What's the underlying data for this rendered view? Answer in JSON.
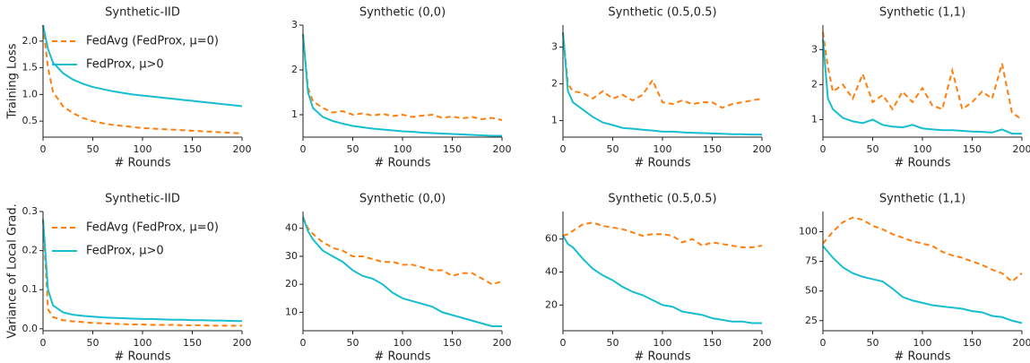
{
  "chart_data": [
    {
      "type": "line",
      "title": "Synthetic-IID",
      "y_label": "Training Loss",
      "x_label": "# Rounds",
      "legend": "upper left",
      "x": [
        0,
        5,
        10,
        20,
        30,
        40,
        50,
        60,
        70,
        80,
        90,
        100,
        110,
        120,
        130,
        140,
        150,
        160,
        170,
        180,
        190,
        200
      ],
      "xlim": [
        0,
        200
      ],
      "xticks": [
        0,
        50,
        100,
        150,
        200
      ],
      "ylim": [
        0.2,
        2.3
      ],
      "yticks": [
        0.5,
        {
          "value": 1,
          "label": "1.0"
        },
        1.5,
        {
          "value": 2,
          "label": "2.0"
        }
      ],
      "series": [
        {
          "name": "FedAvg (FedProx, μ=0)",
          "color": "#ff7f0e",
          "style": "dashed",
          "values": [
            2.3,
            1.5,
            1.05,
            0.78,
            0.65,
            0.56,
            0.5,
            0.46,
            0.43,
            0.41,
            0.39,
            0.37,
            0.36,
            0.35,
            0.34,
            0.33,
            0.32,
            0.31,
            0.3,
            0.29,
            0.28,
            0.27
          ]
        },
        {
          "name": "FedProx, μ>0",
          "color": "#17becf",
          "style": "solid",
          "values": [
            2.3,
            1.85,
            1.6,
            1.4,
            1.28,
            1.2,
            1.14,
            1.1,
            1.06,
            1.03,
            1.0,
            0.98,
            0.96,
            0.94,
            0.92,
            0.9,
            0.88,
            0.86,
            0.84,
            0.82,
            0.8,
            0.78
          ]
        }
      ]
    },
    {
      "type": "line",
      "title": "Synthetic (0,0)",
      "x_label": "# Rounds",
      "x": [
        0,
        5,
        10,
        20,
        30,
        40,
        50,
        60,
        70,
        80,
        90,
        100,
        110,
        120,
        130,
        140,
        150,
        160,
        170,
        180,
        190,
        200
      ],
      "xlim": [
        0,
        200
      ],
      "xticks": [
        0,
        50,
        100,
        150,
        200
      ],
      "ylim": [
        0.5,
        3.0
      ],
      "yticks": [
        1,
        2,
        3
      ],
      "series": [
        {
          "color": "#ff7f0e",
          "style": "dashed",
          "values": [
            2.8,
            1.6,
            1.3,
            1.15,
            1.05,
            1.08,
            1.0,
            1.03,
            0.98,
            1.02,
            0.97,
            1.0,
            0.95,
            0.98,
            1.0,
            0.93,
            0.96,
            0.92,
            0.95,
            0.9,
            0.93,
            0.88
          ]
        },
        {
          "color": "#17becf",
          "style": "solid",
          "values": [
            2.8,
            1.5,
            1.15,
            0.95,
            0.86,
            0.8,
            0.75,
            0.72,
            0.69,
            0.67,
            0.65,
            0.63,
            0.62,
            0.6,
            0.59,
            0.58,
            0.57,
            0.56,
            0.55,
            0.54,
            0.53,
            0.53
          ]
        }
      ]
    },
    {
      "type": "line",
      "title": "Synthetic (0.5,0.5)",
      "x_label": "# Rounds",
      "x": [
        0,
        5,
        10,
        20,
        30,
        40,
        50,
        60,
        70,
        80,
        90,
        100,
        110,
        120,
        130,
        140,
        150,
        160,
        170,
        180,
        190,
        200
      ],
      "xlim": [
        0,
        200
      ],
      "xticks": [
        0,
        50,
        100,
        150,
        200
      ],
      "ylim": [
        0.55,
        3.6
      ],
      "yticks": [
        1,
        2,
        3
      ],
      "series": [
        {
          "color": "#ff7f0e",
          "style": "dashed",
          "values": [
            3.4,
            2.0,
            1.8,
            1.75,
            1.6,
            1.8,
            1.6,
            1.7,
            1.55,
            1.7,
            2.1,
            1.5,
            1.45,
            1.55,
            1.45,
            1.5,
            1.5,
            1.35,
            1.45,
            1.5,
            1.55,
            1.6
          ]
        },
        {
          "color": "#17becf",
          "style": "solid",
          "values": [
            3.4,
            1.8,
            1.5,
            1.3,
            1.1,
            0.95,
            0.88,
            0.8,
            0.78,
            0.75,
            0.73,
            0.7,
            0.7,
            0.68,
            0.67,
            0.66,
            0.65,
            0.64,
            0.63,
            0.63,
            0.62,
            0.62
          ]
        }
      ]
    },
    {
      "type": "line",
      "title": "Synthetic (1,1)",
      "x_label": "# Rounds",
      "x": [
        0,
        5,
        10,
        20,
        30,
        40,
        50,
        60,
        70,
        80,
        90,
        100,
        110,
        120,
        130,
        140,
        150,
        160,
        170,
        180,
        190,
        200
      ],
      "xlim": [
        0,
        200
      ],
      "xticks": [
        0,
        50,
        100,
        150,
        200
      ],
      "ylim": [
        0.5,
        3.7
      ],
      "yticks": [
        1,
        2,
        3
      ],
      "series": [
        {
          "color": "#ff7f0e",
          "style": "dashed",
          "values": [
            3.5,
            2.5,
            1.8,
            2.0,
            1.6,
            2.3,
            1.5,
            1.7,
            1.3,
            1.8,
            1.5,
            1.9,
            1.4,
            1.3,
            2.4,
            1.3,
            1.5,
            1.8,
            1.6,
            2.6,
            1.2,
            1.0
          ]
        },
        {
          "color": "#17becf",
          "style": "solid",
          "values": [
            3.3,
            1.6,
            1.3,
            1.05,
            0.95,
            0.9,
            1.0,
            0.85,
            0.8,
            0.78,
            0.85,
            0.75,
            0.72,
            0.7,
            0.7,
            0.68,
            0.66,
            0.65,
            0.63,
            0.72,
            0.6,
            0.6
          ]
        }
      ]
    },
    {
      "type": "line",
      "title": "Synthetic-IID",
      "y_label": "Variance of Local Grad.",
      "x_label": "# Rounds",
      "legend": "upper left",
      "x": [
        0,
        5,
        10,
        20,
        30,
        40,
        50,
        60,
        70,
        80,
        90,
        100,
        110,
        120,
        130,
        140,
        150,
        160,
        170,
        180,
        190,
        200
      ],
      "xlim": [
        0,
        200
      ],
      "xticks": [
        0,
        50,
        100,
        150,
        200
      ],
      "ylim": [
        -0.005,
        0.3
      ],
      "yticks": [
        {
          "value": 0,
          "label": "0.0"
        },
        0.1,
        0.2,
        0.3
      ],
      "series": [
        {
          "name": "FedAvg (FedProx, μ=0)",
          "color": "#ff7f0e",
          "style": "dashed",
          "values": [
            0.28,
            0.05,
            0.03,
            0.022,
            0.019,
            0.017,
            0.015,
            0.014,
            0.013,
            0.012,
            0.011,
            0.011,
            0.01,
            0.01,
            0.01,
            0.009,
            0.009,
            0.009,
            0.008,
            0.008,
            0.008,
            0.008
          ]
        },
        {
          "name": "FedProx, μ>0",
          "color": "#17becf",
          "style": "solid",
          "values": [
            0.28,
            0.1,
            0.06,
            0.042,
            0.036,
            0.033,
            0.031,
            0.029,
            0.028,
            0.027,
            0.026,
            0.025,
            0.025,
            0.024,
            0.023,
            0.023,
            0.022,
            0.022,
            0.021,
            0.021,
            0.02,
            0.02
          ]
        }
      ]
    },
    {
      "type": "line",
      "title": "Synthetic (0,0)",
      "x_label": "# Rounds",
      "x": [
        0,
        5,
        10,
        20,
        30,
        40,
        50,
        60,
        70,
        80,
        90,
        100,
        110,
        120,
        130,
        140,
        150,
        160,
        170,
        180,
        190,
        200
      ],
      "xlim": [
        0,
        200
      ],
      "xticks": [
        0,
        50,
        100,
        150,
        200
      ],
      "ylim": [
        3.4,
        46
      ],
      "yticks": [
        10,
        20,
        30,
        40
      ],
      "series": [
        {
          "color": "#ff7f0e",
          "style": "dashed",
          "values": [
            44,
            40,
            38,
            35,
            33,
            32,
            30,
            30,
            29,
            28,
            28,
            27,
            27,
            26,
            25,
            25,
            23,
            24,
            24,
            22,
            20,
            21
          ]
        },
        {
          "color": "#17becf",
          "style": "solid",
          "values": [
            44,
            39,
            36,
            32,
            30,
            28,
            25,
            23,
            22,
            20,
            17,
            15,
            14,
            13,
            12,
            10,
            9,
            8,
            7,
            6,
            5,
            5
          ]
        }
      ]
    },
    {
      "type": "line",
      "title": "Synthetic (0.5,0.5)",
      "x_label": "# Rounds",
      "x": [
        0,
        5,
        10,
        20,
        30,
        40,
        50,
        60,
        70,
        80,
        90,
        100,
        110,
        120,
        130,
        140,
        150,
        160,
        170,
        180,
        190,
        200
      ],
      "xlim": [
        0,
        200
      ],
      "xticks": [
        0,
        50,
        100,
        150,
        200
      ],
      "ylim": [
        4.4,
        76.7
      ],
      "yticks": [
        20,
        40,
        60
      ],
      "series": [
        {
          "color": "#ff7f0e",
          "style": "dashed",
          "values": [
            62,
            63,
            65,
            69,
            70,
            68,
            67,
            66,
            64,
            62,
            63,
            63,
            62,
            58,
            60,
            56,
            58,
            57,
            56,
            55,
            55,
            56
          ]
        },
        {
          "color": "#17becf",
          "style": "solid",
          "values": [
            62,
            57,
            55,
            48,
            42,
            38,
            35,
            31,
            28,
            26,
            23,
            20,
            19,
            16,
            15,
            14,
            12,
            11,
            10,
            10,
            9,
            9
          ]
        }
      ]
    },
    {
      "type": "line",
      "title": "Synthetic (1,1)",
      "x_label": "# Rounds",
      "x": [
        0,
        5,
        10,
        20,
        30,
        40,
        50,
        60,
        70,
        80,
        90,
        100,
        110,
        120,
        130,
        140,
        150,
        160,
        170,
        180,
        190,
        200
      ],
      "xlim": [
        0,
        200
      ],
      "xticks": [
        0,
        50,
        100,
        150,
        200
      ],
      "ylim": [
        16.5,
        117
      ],
      "yticks": [
        25,
        50,
        75,
        100
      ],
      "series": [
        {
          "color": "#ff7f0e",
          "style": "dashed",
          "values": [
            90,
            95,
            100,
            108,
            112,
            110,
            105,
            102,
            98,
            95,
            92,
            90,
            88,
            83,
            80,
            78,
            75,
            72,
            68,
            65,
            58,
            65
          ]
        },
        {
          "color": "#17becf",
          "style": "solid",
          "values": [
            88,
            83,
            78,
            70,
            65,
            62,
            60,
            58,
            52,
            45,
            42,
            40,
            38,
            37,
            36,
            35,
            33,
            32,
            29,
            28,
            25,
            23
          ]
        }
      ]
    }
  ]
}
